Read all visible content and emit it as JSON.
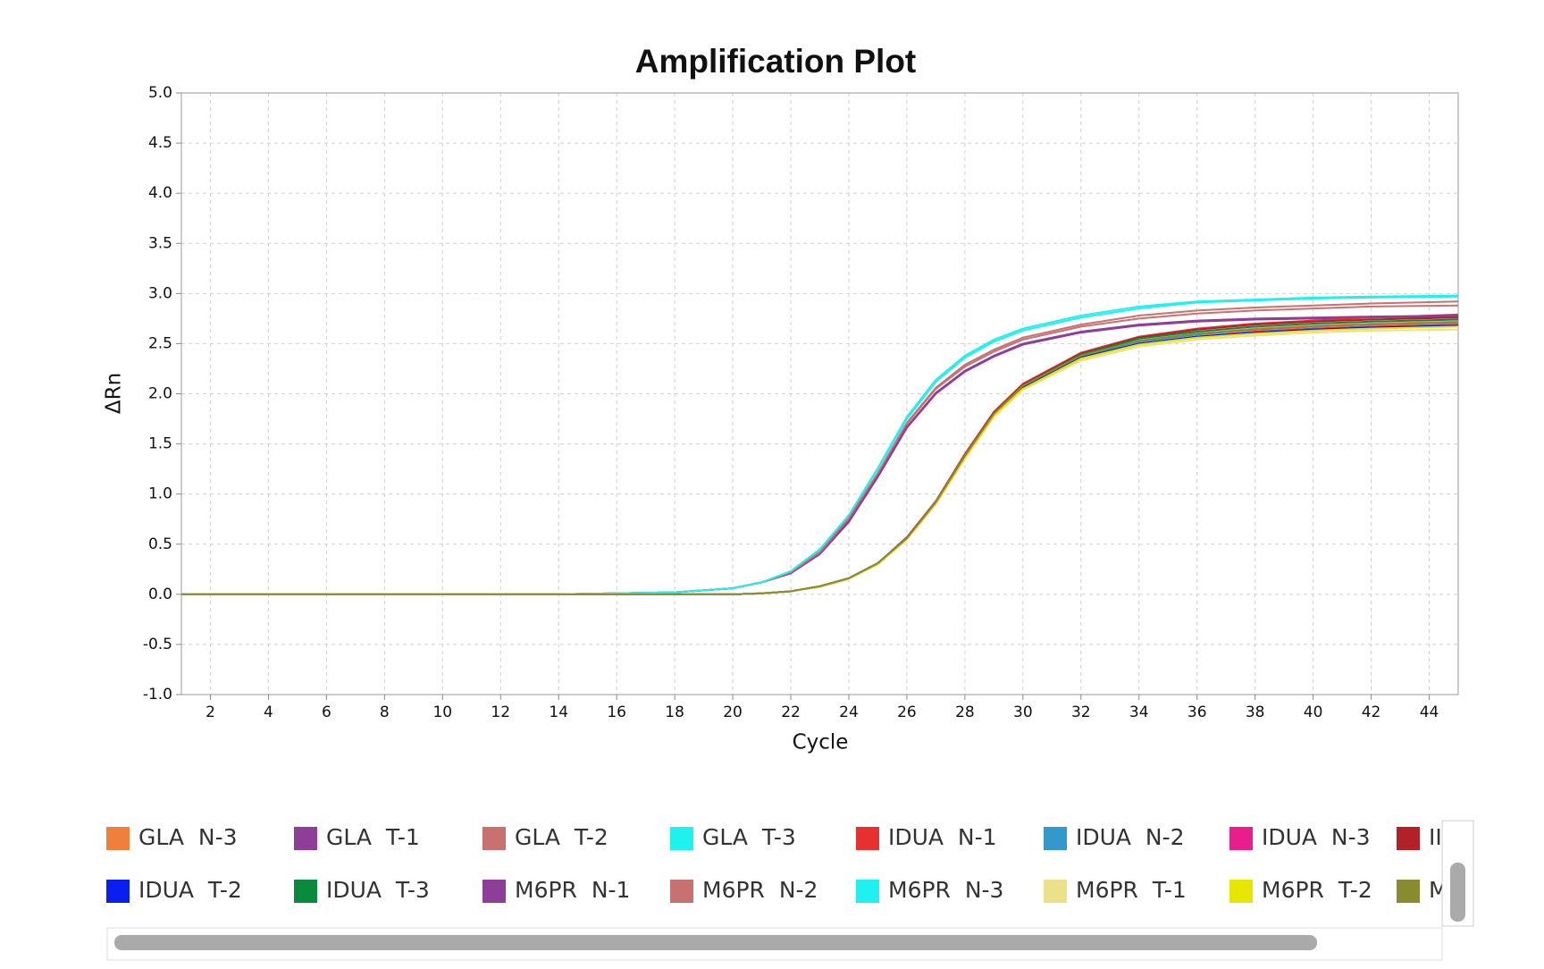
{
  "chart_data": {
    "type": "line",
    "title": "Amplification Plot",
    "x_label": "Cycle",
    "y_label": "ΔRn",
    "x": [
      1,
      14,
      18,
      20,
      21,
      22,
      23,
      24,
      25,
      26,
      27,
      28,
      29,
      30,
      32,
      34,
      36,
      38,
      40,
      42,
      45
    ],
    "xlim": [
      1,
      45
    ],
    "xticks": [
      2,
      4,
      6,
      8,
      10,
      12,
      14,
      16,
      18,
      20,
      22,
      24,
      26,
      28,
      30,
      32,
      34,
      36,
      38,
      40,
      42,
      44
    ],
    "ylim": [
      -1,
      5
    ],
    "yticks": [
      {
        "value": -1,
        "label": "-1.0"
      },
      -0.5,
      {
        "value": 0,
        "label": "0.0"
      },
      0.5,
      {
        "value": 1,
        "label": "1.0"
      },
      1.5,
      {
        "value": 2,
        "label": "2.0"
      },
      2.5,
      {
        "value": 3,
        "label": "3.0"
      },
      3.5,
      {
        "value": 4,
        "label": "4.0"
      },
      4.5,
      {
        "value": 5,
        "label": "5.0"
      }
    ],
    "grid": true,
    "series": [
      {
        "name": "GLA  N-3",
        "color": "#f07f3c",
        "values": [
          0,
          0,
          0,
          0,
          0.01,
          0.03,
          0.08,
          0.16,
          0.31,
          0.56,
          0.92,
          1.38,
          1.8,
          2.08,
          2.38,
          2.53,
          2.6,
          2.65,
          2.68,
          2.7,
          2.72
        ]
      },
      {
        "name": "GLA  T-1",
        "color": "#8e3e98",
        "values": [
          0,
          0,
          0.02,
          0.06,
          0.12,
          0.21,
          0.4,
          0.72,
          1.17,
          1.66,
          2.0,
          2.22,
          2.37,
          2.49,
          2.61,
          2.68,
          2.72,
          2.74,
          2.75,
          2.76,
          2.77
        ]
      },
      {
        "name": "GLA  T-2",
        "color": "#c97070",
        "values": [
          0,
          0,
          0.02,
          0.06,
          0.12,
          0.22,
          0.42,
          0.75,
          1.2,
          1.7,
          2.05,
          2.27,
          2.42,
          2.54,
          2.67,
          2.75,
          2.8,
          2.83,
          2.85,
          2.87,
          2.88
        ]
      },
      {
        "name": "GLA  T-3",
        "color": "#1ff0f0",
        "values": [
          0,
          0,
          0.02,
          0.06,
          0.12,
          0.23,
          0.44,
          0.78,
          1.25,
          1.75,
          2.12,
          2.36,
          2.52,
          2.63,
          2.76,
          2.85,
          2.91,
          2.93,
          2.95,
          2.96,
          2.97
        ]
      },
      {
        "name": "IDUA  N-1",
        "color": "#e8302f",
        "values": [
          0,
          0,
          0,
          0,
          0.01,
          0.03,
          0.08,
          0.16,
          0.31,
          0.57,
          0.93,
          1.4,
          1.82,
          2.1,
          2.41,
          2.57,
          2.65,
          2.7,
          2.73,
          2.76,
          2.79
        ]
      },
      {
        "name": "IDUA  N-2",
        "color": "#3399cc",
        "values": [
          0,
          0,
          0,
          0,
          0.01,
          0.03,
          0.08,
          0.16,
          0.31,
          0.56,
          0.92,
          1.38,
          1.8,
          2.07,
          2.37,
          2.52,
          2.59,
          2.64,
          2.67,
          2.69,
          2.71
        ]
      },
      {
        "name": "IDUA  N-3",
        "color": "#e91e8c",
        "values": [
          0,
          0,
          0,
          0,
          0.01,
          0.03,
          0.08,
          0.16,
          0.3,
          0.55,
          0.9,
          1.36,
          1.78,
          2.05,
          2.35,
          2.5,
          2.57,
          2.62,
          2.65,
          2.67,
          2.69
        ]
      },
      {
        "name": "II",
        "color": "#b22028",
        "values": [
          0,
          0,
          0,
          0,
          0.01,
          0.03,
          0.08,
          0.16,
          0.31,
          0.56,
          0.92,
          1.38,
          1.81,
          2.09,
          2.4,
          2.56,
          2.64,
          2.69,
          2.72,
          2.74,
          2.76
        ]
      },
      {
        "name": "IDUA  T-2",
        "color": "#0a1ef0",
        "values": [
          0,
          0,
          0,
          0,
          0.01,
          0.03,
          0.08,
          0.16,
          0.31,
          0.56,
          0.92,
          1.37,
          1.79,
          2.06,
          2.36,
          2.5,
          2.57,
          2.61,
          2.64,
          2.66,
          2.68
        ]
      },
      {
        "name": "IDUA  T-3",
        "color": "#0a8a3c",
        "values": [
          0,
          0,
          0,
          0,
          0.01,
          0.03,
          0.08,
          0.16,
          0.31,
          0.56,
          0.92,
          1.38,
          1.8,
          2.08,
          2.39,
          2.55,
          2.62,
          2.67,
          2.7,
          2.72,
          2.74
        ]
      },
      {
        "name": "M6PR  N-1",
        "color": "#8e3e98",
        "values": [
          0,
          0,
          0.02,
          0.06,
          0.12,
          0.21,
          0.41,
          0.73,
          1.18,
          1.67,
          2.01,
          2.23,
          2.38,
          2.5,
          2.62,
          2.69,
          2.73,
          2.75,
          2.76,
          2.77,
          2.78
        ]
      },
      {
        "name": "M6PR  N-2",
        "color": "#c97070",
        "values": [
          0,
          0,
          0.02,
          0.06,
          0.12,
          0.22,
          0.42,
          0.76,
          1.21,
          1.71,
          2.06,
          2.29,
          2.44,
          2.56,
          2.69,
          2.78,
          2.83,
          2.86,
          2.88,
          2.9,
          2.92
        ]
      },
      {
        "name": "M6PR  N-3",
        "color": "#1ff0f0",
        "values": [
          0,
          0,
          0.02,
          0.06,
          0.12,
          0.23,
          0.45,
          0.79,
          1.26,
          1.77,
          2.14,
          2.38,
          2.54,
          2.65,
          2.78,
          2.87,
          2.92,
          2.94,
          2.96,
          2.97,
          2.98
        ]
      },
      {
        "name": "M6PR  T-1",
        "color": "#ede08a",
        "values": [
          0,
          0,
          0,
          0,
          0.01,
          0.03,
          0.07,
          0.15,
          0.3,
          0.55,
          0.9,
          1.35,
          1.77,
          2.04,
          2.33,
          2.47,
          2.54,
          2.58,
          2.61,
          2.63,
          2.64
        ]
      },
      {
        "name": "M6PR  T-2",
        "color": "#e6e600",
        "values": [
          0,
          0,
          0,
          0,
          0.01,
          0.03,
          0.08,
          0.16,
          0.3,
          0.55,
          0.91,
          1.36,
          1.78,
          2.05,
          2.35,
          2.49,
          2.56,
          2.6,
          2.63,
          2.65,
          2.67
        ]
      },
      {
        "name": "M",
        "color": "#8a8a30",
        "values": [
          0,
          0,
          0,
          0,
          0.01,
          0.03,
          0.08,
          0.16,
          0.31,
          0.56,
          0.92,
          1.38,
          1.8,
          2.08,
          2.38,
          2.53,
          2.6,
          2.64,
          2.67,
          2.69,
          2.71
        ]
      }
    ]
  }
}
